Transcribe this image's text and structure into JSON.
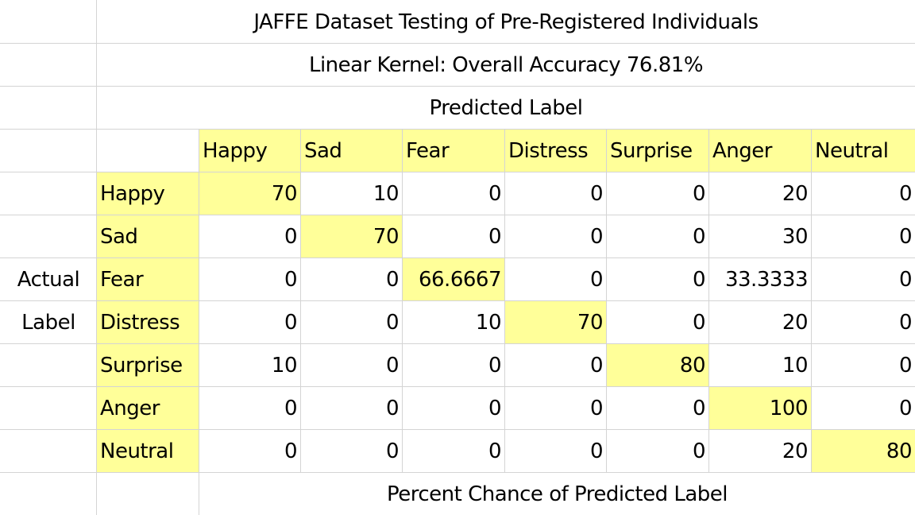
{
  "chart_data": {
    "type": "table",
    "title": "JAFFE Dataset Testing of Pre-Registered Individuals",
    "subtitle": "Linear Kernel: Overall Accuracy 76.81%",
    "column_axis_label": "Predicted Label",
    "row_axis_label": [
      "Actual",
      "Label"
    ],
    "footer": "Percent Chance of Predicted Label",
    "columns": [
      "Happy",
      "Sad",
      "Fear",
      "Distress",
      "Surprise",
      "Anger",
      "Neutral"
    ],
    "rows": [
      "Happy",
      "Sad",
      "Fear",
      "Distress",
      "Surprise",
      "Anger",
      "Neutral"
    ],
    "values": [
      [
        "70",
        "10",
        "0",
        "0",
        "0",
        "20",
        "0"
      ],
      [
        "0",
        "70",
        "0",
        "0",
        "0",
        "30",
        "0"
      ],
      [
        "0",
        "0",
        "66.6667",
        "0",
        "0",
        "33.3333",
        "0"
      ],
      [
        "0",
        "0",
        "10",
        "70",
        "0",
        "20",
        "0"
      ],
      [
        "10",
        "0",
        "0",
        "0",
        "80",
        "10",
        "0"
      ],
      [
        "0",
        "0",
        "0",
        "0",
        "0",
        "100",
        "0"
      ],
      [
        "0",
        "0",
        "0",
        "0",
        "0",
        "20",
        "80"
      ]
    ],
    "highlight_color": "#ffff99"
  }
}
